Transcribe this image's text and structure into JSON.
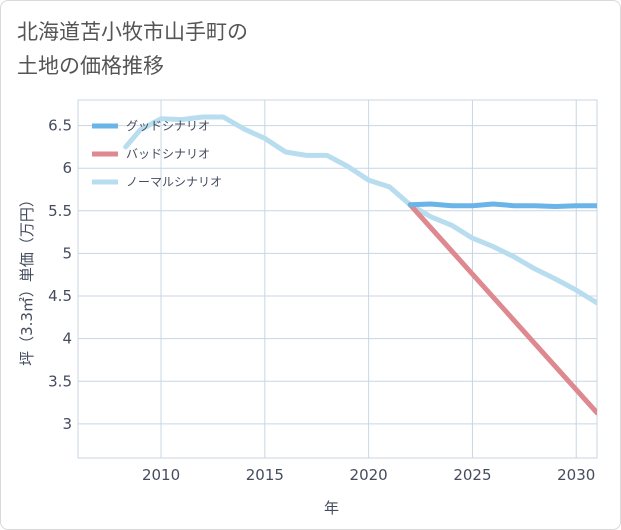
{
  "title_lines": [
    "北海道苫小牧市山手町の",
    "土地の価格推移"
  ],
  "chart_data": {
    "type": "line",
    "xlabel": "年",
    "ylabel": "坪（3.3㎡）単価（万円）",
    "xlim": [
      2006,
      2031
    ],
    "ylim": [
      2.6,
      6.8
    ],
    "x_ticks": [
      2010,
      2015,
      2020,
      2025,
      2030
    ],
    "y_ticks": [
      3,
      3.5,
      4,
      4.5,
      5,
      5.5,
      6,
      6.5
    ],
    "x_tick_labels": [
      "2010",
      "2015",
      "2020",
      "2025",
      "2030"
    ],
    "y_tick_labels": [
      "3",
      "3.5",
      "4",
      "4.5",
      "5",
      "5.5",
      "6",
      "6.5"
    ],
    "grid": true,
    "legend_position": "top-left",
    "series": [
      {
        "name": "グッドシナリオ",
        "color": "#6bb4e8",
        "x": [
          2022,
          2023,
          2024,
          2025,
          2026,
          2027,
          2028,
          2029,
          2030,
          2031
        ],
        "y": [
          5.57,
          5.58,
          5.56,
          5.56,
          5.58,
          5.56,
          5.56,
          5.55,
          5.56,
          5.56
        ]
      },
      {
        "name": "バッドシナリオ",
        "color": "#de8890",
        "x": [
          2022,
          2031
        ],
        "y": [
          5.57,
          3.13
        ]
      },
      {
        "name": "ノーマルシナリオ",
        "color": "#b8ddef",
        "x": [
          2008.3,
          2009,
          2010,
          2011,
          2012,
          2013,
          2014,
          2015,
          2016,
          2017,
          2018,
          2019,
          2020,
          2021,
          2022,
          2023,
          2024,
          2025,
          2026,
          2027,
          2028,
          2029,
          2030,
          2031
        ],
        "y": [
          6.25,
          6.45,
          6.58,
          6.57,
          6.6,
          6.6,
          6.46,
          6.35,
          6.19,
          6.15,
          6.15,
          6.02,
          5.86,
          5.78,
          5.57,
          5.43,
          5.33,
          5.18,
          5.08,
          4.96,
          4.82,
          4.7,
          4.57,
          4.42
        ]
      }
    ]
  }
}
